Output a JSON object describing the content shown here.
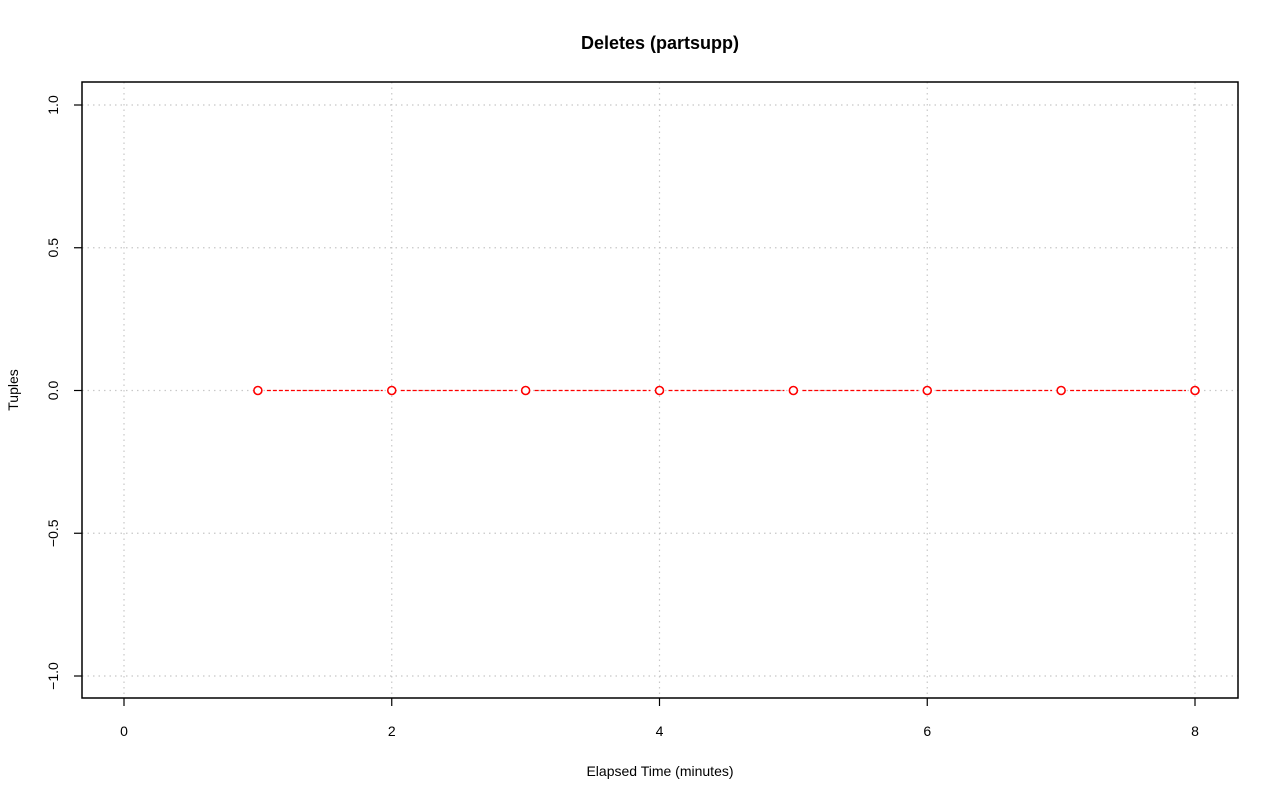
{
  "chart_data": {
    "type": "line",
    "title": "Deletes (partsupp)",
    "xlabel": "Elapsed Time (minutes)",
    "ylabel": "Tuples",
    "xlim": [
      0,
      8
    ],
    "ylim": [
      -1,
      1
    ],
    "x_ticks": [
      0,
      2,
      4,
      6,
      8
    ],
    "y_ticks": [
      -1.0,
      -0.5,
      0.0,
      0.5,
      1.0
    ],
    "x_tick_labels": [
      "0",
      "2",
      "4",
      "6",
      "8"
    ],
    "y_tick_labels": [
      "−1.0",
      "−0.5",
      "0.0",
      "0.5",
      "1.0"
    ],
    "grid": true,
    "series": [
      {
        "x": [
          1,
          2,
          3,
          4,
          5,
          6,
          7,
          8
        ],
        "values": [
          0,
          0,
          0,
          0,
          0,
          0,
          0,
          0
        ],
        "color": "#ff0000",
        "line_style": "dashed",
        "marker": "open-circle"
      }
    ]
  }
}
